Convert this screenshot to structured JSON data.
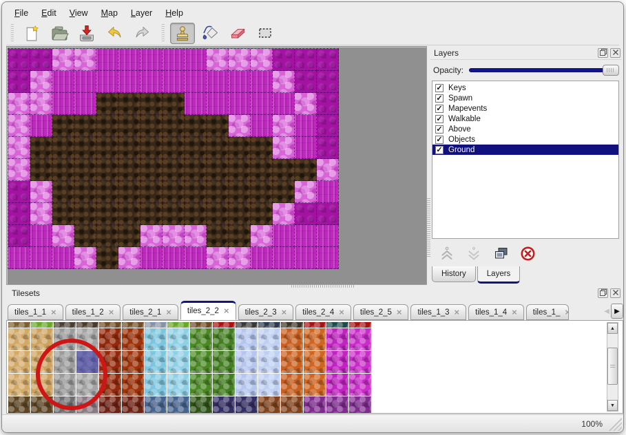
{
  "window": {
    "background": "#ececec"
  },
  "menubar": {
    "items": [
      {
        "label": "File"
      },
      {
        "label": "Edit"
      },
      {
        "label": "View"
      },
      {
        "label": "Map"
      },
      {
        "label": "Layer"
      },
      {
        "label": "Help"
      }
    ]
  },
  "toolbar": {
    "groups": [
      {
        "buttons": [
          {
            "id": "new",
            "icon": "new-file-icon",
            "active": false
          },
          {
            "id": "open",
            "icon": "open-folder-icon",
            "active": false
          },
          {
            "id": "save",
            "icon": "save-icon",
            "active": false
          },
          {
            "id": "undo",
            "icon": "undo-icon",
            "active": false
          },
          {
            "id": "redo",
            "icon": "redo-icon",
            "active": false
          }
        ]
      },
      {
        "buttons": [
          {
            "id": "stamp",
            "icon": "stamp-icon",
            "active": true
          },
          {
            "id": "fill",
            "icon": "fill-bucket-icon",
            "active": false
          },
          {
            "id": "eraser",
            "icon": "eraser-icon",
            "active": false
          },
          {
            "id": "select",
            "icon": "rect-select-icon",
            "active": false
          }
        ]
      }
    ]
  },
  "map_view": {
    "background": "#909090",
    "tile_size": 32,
    "grid_columns": 15,
    "grid_rows": 10,
    "legend": {
      "D": "#a313a3",
      "M": "#bf29bf",
      "L": "#d964d9",
      "B": "#362718"
    },
    "rows": [
      "DDLLMMMMMLLLDDD",
      "DLMMMMMMMMMMLDD",
      "LLMMBBBBMMMMMLD",
      "LMBBBBBBBBLMLMD",
      "LBBBBBBBBBBBLMD",
      "LBBBBBBBBBBBBBL",
      "DLBBBBBBBBBBBLM",
      "DLBBBBBBBBBBLDD",
      "DMLBBBLLLBBLMMM",
      "MMMLBLMMMLLMMMM"
    ]
  },
  "layers_panel": {
    "title": "Layers",
    "header_icons": [
      "float-icon",
      "close-icon"
    ],
    "opacity_label": "Opacity:",
    "opacity_percent": 100,
    "layers": [
      {
        "name": "Keys",
        "checked": true,
        "selected": false
      },
      {
        "name": "Spawn",
        "checked": true,
        "selected": false
      },
      {
        "name": "Mapevents",
        "checked": true,
        "selected": false
      },
      {
        "name": "Walkable",
        "checked": true,
        "selected": false
      },
      {
        "name": "Above",
        "checked": true,
        "selected": false
      },
      {
        "name": "Objects",
        "checked": true,
        "selected": false
      },
      {
        "name": "Ground",
        "checked": true,
        "selected": true
      }
    ],
    "selection_color": "#10107e",
    "action_icons": [
      "raise-layer-icon",
      "lower-layer-icon",
      "duplicate-layer-icon",
      "delete-layer-icon"
    ],
    "bottom_tabs": [
      {
        "label": "History",
        "active": false
      },
      {
        "label": "Layers",
        "active": true
      }
    ]
  },
  "tilesets_panel": {
    "title": "Tilesets",
    "header_icons": [
      "float-icon",
      "close-icon"
    ],
    "tabs": [
      {
        "label": "tiles_1_1",
        "active": false
      },
      {
        "label": "tiles_1_2",
        "active": false
      },
      {
        "label": "tiles_2_1",
        "active": false
      },
      {
        "label": "tiles_2_2",
        "active": true
      },
      {
        "label": "tiles_2_3",
        "active": false
      },
      {
        "label": "tiles_2_4",
        "active": false
      },
      {
        "label": "tiles_2_5",
        "active": false
      },
      {
        "label": "tiles_1_3",
        "active": false
      },
      {
        "label": "tiles_1_4",
        "active": false
      },
      {
        "label": "tiles_1_",
        "active": false,
        "truncated": true
      }
    ],
    "grid": {
      "tile_size": 32,
      "sliver_row": [
        "#7d5e31",
        "#67a82b",
        "#494033",
        "#4a3b2c",
        "#6d4b25",
        "#6f4e27",
        "#8793a5",
        "#67a82b",
        "#6d4b25",
        "#a51313",
        "#3a3a3a",
        "#2d3b4d",
        "#3c3426",
        "#a51313",
        "#1f4a4a",
        "#a51313"
      ],
      "columns": [
        "#d3a967",
        "#cda15e",
        "#9b9b9b",
        "#a3a3a3",
        "#93290a",
        "#9e3208",
        "#7cc5de",
        "#8fd0e6",
        "#4a8824",
        "#437f20",
        "#b5c6ee",
        "#bfcff2",
        "#c85f1e",
        "#d06520",
        "#c122c1",
        "#ca2cca"
      ],
      "full_row_count": 3,
      "bottom_row": [
        "#5d4522",
        "#5d4522",
        "#6f6f72",
        "#8b7a83",
        "#6f2113",
        "#6f2113",
        "#47648e",
        "#47648e",
        "#2f5317",
        "#332e63",
        "#332e63",
        "#82421c",
        "#82421c",
        "#7f2b8f",
        "#7f2b8f",
        "#7f2b8f"
      ],
      "selected_cell": {
        "row": 1,
        "col": 3
      },
      "selection_color": "rgba(45,45,165,0.55)"
    },
    "annotation": {
      "shape": "circle",
      "color": "#cd1616"
    }
  },
  "statusbar": {
    "zoom_level": "100%"
  }
}
